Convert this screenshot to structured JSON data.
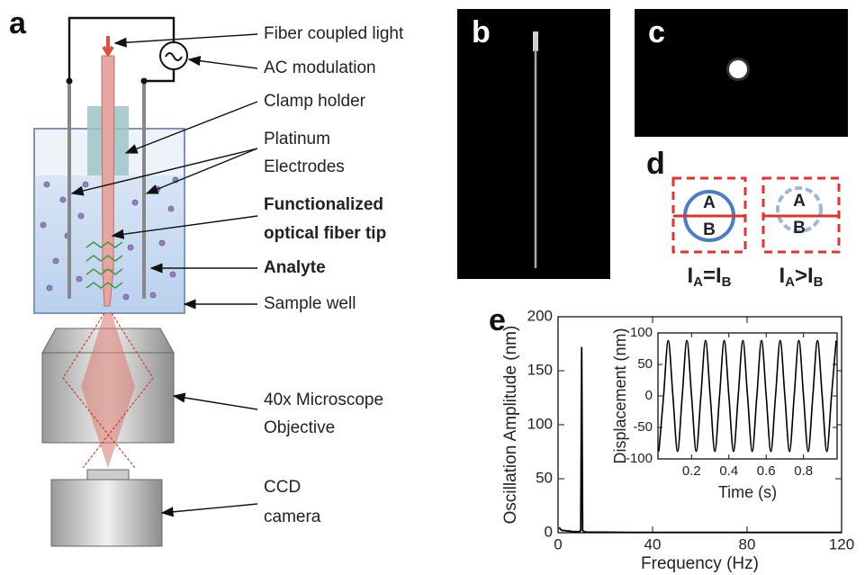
{
  "panel_labels": [
    "a",
    "b",
    "c",
    "d",
    "e"
  ],
  "diagram": {
    "labels": [
      [
        "Fiber coupled light"
      ],
      [
        "AC modulation"
      ],
      [
        "Clamp holder"
      ],
      [
        "Platinum",
        "Electrodes"
      ],
      [
        "Functionalized",
        "optical fiber tip"
      ],
      [
        "Analyte"
      ],
      [
        "Sample well"
      ],
      [
        "40x Microscope",
        "Objective"
      ],
      [
        "CCD",
        "camera"
      ]
    ]
  },
  "quadrant": {
    "halves": [
      "A",
      "B"
    ],
    "left_label": [
      "I",
      "A",
      "=I",
      "B"
    ],
    "right_label": [
      "I",
      "A",
      ">I",
      "B"
    ]
  },
  "chart_data": [
    {
      "type": "line",
      "xlabel": "Frequency (Hz)",
      "ylabel": "Oscillation Amplitude (nm)",
      "x": [
        0.5,
        1,
        2,
        3,
        4,
        5,
        6,
        7,
        8,
        9,
        9.6,
        10,
        10.4,
        11,
        12,
        15,
        20,
        30,
        40,
        60,
        80,
        100,
        120
      ],
      "values": [
        5,
        3,
        2,
        2,
        1.5,
        1.5,
        1,
        1,
        1,
        1,
        2,
        172,
        2,
        1,
        0.5,
        0.5,
        0.5,
        0.3,
        0.3,
        0.3,
        0.3,
        0.3,
        0.3
      ],
      "color": "#000000",
      "xlim": [
        0,
        120
      ],
      "xticks": [
        0,
        40,
        80,
        120
      ],
      "ylim": [
        0,
        200
      ],
      "yticks": [
        0,
        50,
        100,
        150,
        200
      ]
    },
    {
      "type": "line",
      "xlabel": "Time (s)",
      "ylabel": "Displacement (nm)",
      "x": [
        0.025,
        0.05,
        0.075,
        0.1,
        0.125,
        0.15,
        0.175,
        0.2,
        0.225,
        0.25,
        0.275,
        0.3,
        0.325,
        0.35,
        0.375,
        0.4,
        0.425,
        0.45,
        0.475,
        0.5,
        0.525,
        0.55,
        0.575,
        0.6,
        0.625,
        0.65,
        0.675,
        0.7,
        0.725,
        0.75,
        0.775,
        0.8,
        0.825,
        0.85,
        0.875,
        0.9,
        0.925,
        0.95,
        0.975
      ],
      "values": [
        -88,
        0,
        88,
        0,
        -88,
        0,
        88,
        0,
        -88,
        0,
        88,
        0,
        -88,
        0,
        88,
        0,
        -88,
        0,
        88,
        0,
        -88,
        0,
        88,
        0,
        -88,
        0,
        88,
        0,
        -88,
        0,
        88,
        0,
        -88,
        0,
        88,
        0,
        -88,
        0,
        88
      ],
      "color": "#000000",
      "smooth": true,
      "xlim": [
        0.02,
        0.98
      ],
      "xticks": [
        0.2,
        0.4,
        0.6,
        0.8
      ],
      "ylim": [
        -100,
        100
      ],
      "yticks": [
        -100,
        -50,
        0,
        50,
        100
      ]
    }
  ]
}
